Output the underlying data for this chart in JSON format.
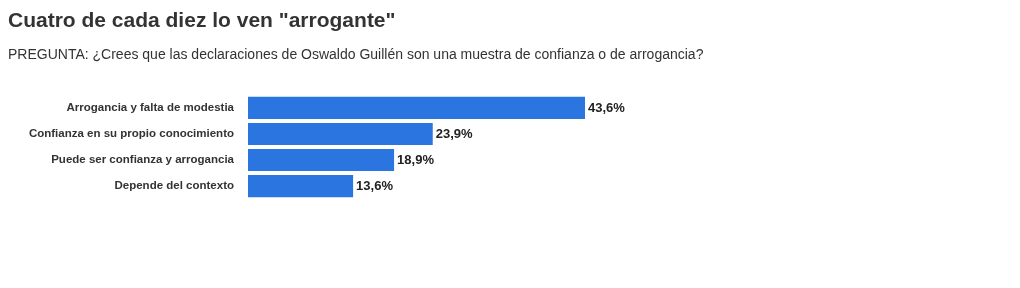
{
  "chart_data": {
    "type": "bar",
    "orientation": "horizontal",
    "title": "Cuatro de cada diez lo ven \"arrogante\"",
    "subtitle": "PREGUNTA: ¿Crees que las declaraciones de Oswaldo Guillén son una muestra de confianza o de arrogancia?",
    "categories": [
      "Arrogancia y falta de modestia",
      "Confianza en su propio conocimiento",
      "Puede ser confianza y arrogancia",
      "Depende del contexto"
    ],
    "values": [
      43.6,
      23.9,
      18.9,
      13.6
    ],
    "value_labels": [
      "43,6%",
      "23,9%",
      "18,9%",
      "13,6%"
    ],
    "color": "#2a75e0"
  }
}
